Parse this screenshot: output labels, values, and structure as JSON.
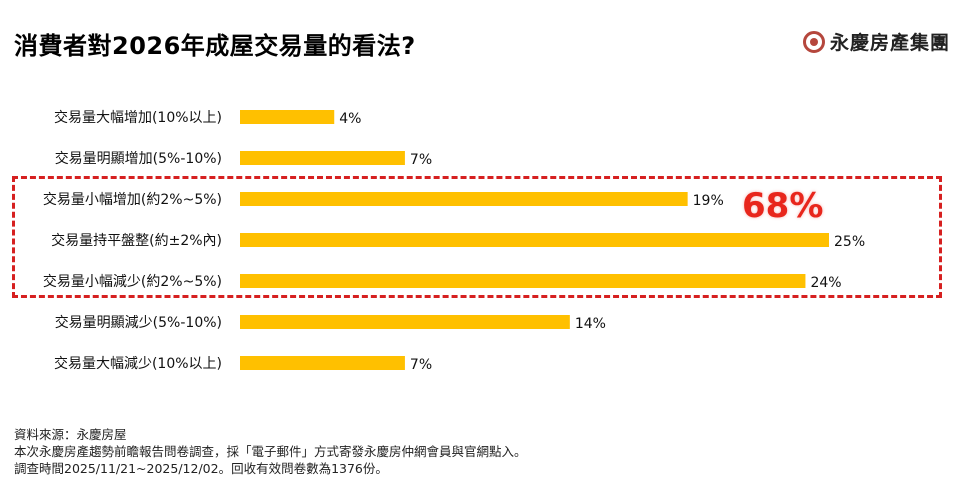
{
  "title": "消費者對2026年成屋交易量的看法?",
  "logo": {
    "text": "永慶房產集團",
    "icon": "yungching-logo-mark",
    "color": "#b5473d"
  },
  "chart_data": {
    "type": "bar",
    "orientation": "horizontal",
    "categories": [
      "交易量大幅增加(10%以上)",
      "交易量明顯增加(5%-10%)",
      "交易量小幅增加(約2%~5%)",
      "交易量持平盤整(約±2%內)",
      "交易量小幅減少(約2%~5%)",
      "交易量明顯減少(5%-10%)",
      "交易量大幅減少(10%以上)"
    ],
    "values": [
      4,
      7,
      19,
      25,
      24,
      14,
      7
    ],
    "value_labels": [
      "4%",
      "7%",
      "19%",
      "25%",
      "24%",
      "14%",
      "7%"
    ],
    "unit": "%",
    "xlim": [
      0,
      25
    ],
    "bar_color": "#FFC000",
    "grid": false,
    "legend": "none"
  },
  "highlight": {
    "value": "68%",
    "color": "#e8261c",
    "rows": [
      2,
      3,
      4
    ]
  },
  "footnotes": [
    "資料來源：永慶房屋",
    "本次永慶房產趨勢前瞻報告問卷調查，採「電子郵件」方式寄發永慶房仲網會員與官網點入。",
    "調查時間2025/11/21~2025/12/02。回收有效問卷數為1376份。"
  ]
}
